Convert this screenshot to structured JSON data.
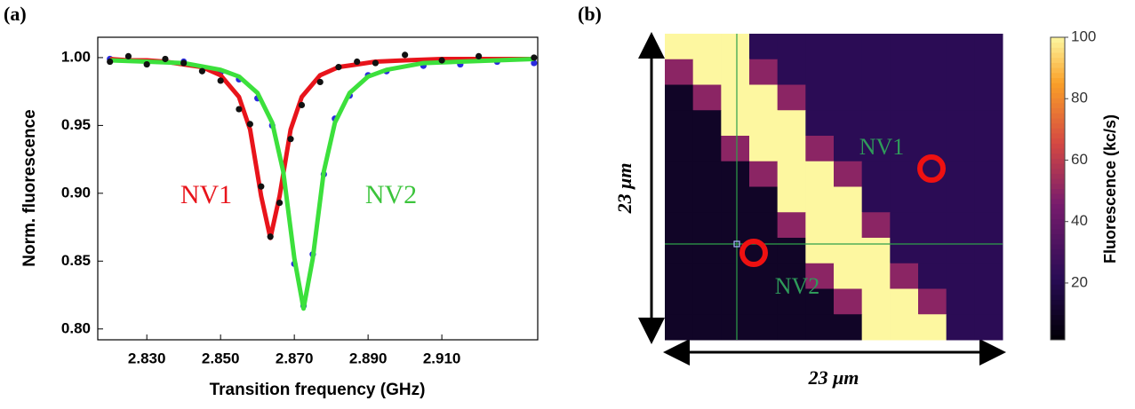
{
  "chart_data": [
    {
      "type": "scatter",
      "panel_label": "(a)",
      "xlabel": "Transition frequency (GHz)",
      "ylabel": "Norm. fluorescence",
      "xlim": [
        2.8167,
        2.936
      ],
      "ylim": [
        0.792,
        1.015
      ],
      "xticks": [
        {
          "value": 2.83,
          "label": "2.830"
        },
        {
          "value": 2.85,
          "label": "2.850"
        },
        {
          "value": 2.87,
          "label": "2.870"
        },
        {
          "value": 2.89,
          "label": "2.890"
        },
        {
          "value": 2.91,
          "label": "2.910"
        }
      ],
      "yticks": [
        {
          "value": 0.8,
          "label": "0.80"
        },
        {
          "value": 0.85,
          "label": "0.85"
        },
        {
          "value": 0.9,
          "label": "0.90"
        },
        {
          "value": 0.95,
          "label": "0.95"
        },
        {
          "value": 1.0,
          "label": "1.00"
        }
      ],
      "annotations": [
        {
          "text": "NV1",
          "color": "#e8141b"
        },
        {
          "text": "NV2",
          "color": "#3cc43c"
        }
      ],
      "series": [
        {
          "style": "markers",
          "color": "#2a2adf",
          "x": [
            2.82,
            2.83,
            2.84,
            2.85,
            2.855,
            2.86,
            2.864,
            2.867,
            2.87,
            2.8725,
            2.875,
            2.878,
            2.881,
            2.885,
            2.89,
            2.895,
            2.905,
            2.915,
            2.925,
            2.935
          ],
          "values": [
            0.999,
            0.996,
            0.997,
            0.989,
            0.984,
            0.97,
            0.95,
            0.92,
            0.848,
            0.817,
            0.855,
            0.914,
            0.955,
            0.972,
            0.987,
            0.99,
            0.994,
            0.995,
            0.997,
            0.996
          ]
        },
        {
          "style": "line",
          "color": "#e8141b",
          "x": [
            2.82,
            2.825,
            2.83,
            2.835,
            2.84,
            2.845,
            2.85,
            2.855,
            2.858,
            2.861,
            2.8635,
            2.866,
            2.869,
            2.872,
            2.877,
            2.882,
            2.887,
            2.892,
            2.9,
            2.91,
            2.92,
            2.935
          ],
          "values": [
            0.999,
            0.998,
            0.998,
            0.997,
            0.995,
            0.993,
            0.987,
            0.971,
            0.947,
            0.898,
            0.867,
            0.898,
            0.947,
            0.971,
            0.987,
            0.993,
            0.995,
            0.997,
            0.998,
            0.999,
            0.999,
            0.999
          ]
        },
        {
          "style": "line",
          "color": "#3ce03c",
          "x": [
            2.82,
            2.83,
            2.84,
            2.85,
            2.855,
            2.86,
            2.864,
            2.867,
            2.87,
            2.8725,
            2.875,
            2.878,
            2.881,
            2.885,
            2.89,
            2.895,
            2.905,
            2.915,
            2.925,
            2.935
          ],
          "values": [
            0.998,
            0.997,
            0.996,
            0.991,
            0.986,
            0.974,
            0.952,
            0.916,
            0.852,
            0.815,
            0.852,
            0.916,
            0.952,
            0.974,
            0.986,
            0.991,
            0.996,
            0.997,
            0.998,
            0.999
          ]
        },
        {
          "style": "markers",
          "color": "#111111",
          "x": [
            2.82,
            2.825,
            2.83,
            2.835,
            2.84,
            2.845,
            2.85,
            2.855,
            2.858,
            2.861,
            2.8635,
            2.866,
            2.869,
            2.872,
            2.877,
            2.882,
            2.887,
            2.892,
            2.9,
            2.91,
            2.92,
            2.935
          ],
          "values": [
            0.997,
            1.001,
            0.995,
            0.999,
            0.996,
            0.99,
            0.983,
            0.962,
            0.951,
            0.905,
            0.868,
            0.893,
            0.94,
            0.965,
            0.982,
            0.993,
            0.997,
            0.996,
            1.002,
            0.998,
            1.001,
            1.0
          ]
        }
      ]
    },
    {
      "type": "heatmap",
      "panel_label": "(b)",
      "xlabel": "23 μm",
      "ylabel": "23 μm",
      "colorbar_label": "Fluorescence (kc/s)",
      "colormap": "inferno",
      "clim": [
        1.5,
        100
      ],
      "cticks": [
        20,
        40,
        60,
        80,
        100
      ],
      "annotations": [
        {
          "text": "NV1",
          "color": "#2f9a5a"
        },
        {
          "text": "NV2",
          "color": "#2f9a5a"
        }
      ],
      "z": [
        [
          100,
          100,
          100,
          22,
          22,
          22,
          22,
          22,
          22,
          22,
          22,
          22
        ],
        [
          50,
          100,
          100,
          50,
          22,
          22,
          22,
          22,
          22,
          22,
          22,
          22
        ],
        [
          10,
          50,
          100,
          100,
          50,
          22,
          22,
          22,
          22,
          22,
          22,
          22
        ],
        [
          10,
          10,
          100,
          100,
          100,
          22,
          22,
          22,
          22,
          22,
          22,
          22
        ],
        [
          10,
          10,
          50,
          100,
          100,
          50,
          22,
          22,
          22,
          22,
          22,
          22
        ],
        [
          10,
          10,
          10,
          50,
          100,
          100,
          50,
          22,
          22,
          22,
          22,
          22
        ],
        [
          10,
          10,
          10,
          10,
          100,
          100,
          100,
          22,
          22,
          22,
          22,
          22
        ],
        [
          10,
          10,
          10,
          10,
          50,
          100,
          100,
          50,
          22,
          22,
          22,
          22
        ],
        [
          10,
          10,
          10,
          10,
          10,
          100,
          100,
          100,
          22,
          22,
          22,
          22
        ],
        [
          10,
          10,
          10,
          10,
          10,
          50,
          100,
          100,
          50,
          22,
          22,
          22
        ],
        [
          10,
          10,
          10,
          10,
          10,
          10,
          50,
          100,
          100,
          50,
          22,
          22
        ],
        [
          10,
          10,
          10,
          10,
          10,
          10,
          10,
          100,
          100,
          100,
          22,
          22
        ]
      ]
    }
  ]
}
